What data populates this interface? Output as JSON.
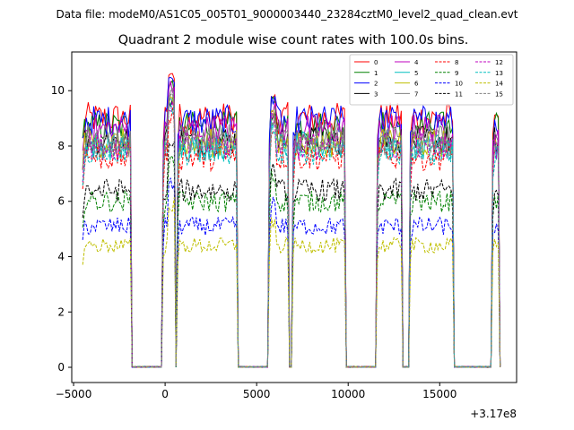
{
  "chart_data": {
    "type": "line",
    "suptitle": "Data file: modeM0/AS1C05_005T01_9000003440_23284cztM0_level2_quad_clean.evt",
    "title": "Quadrant 2 module wise count rates with 100.0s bins.",
    "xlabel": "",
    "ylabel": "",
    "offset_label": "+3.17e8",
    "xlim": [
      -5100,
      19200
    ],
    "ylim": [
      -0.55,
      11.4
    ],
    "xticks": [
      -5000,
      0,
      5000,
      10000,
      15000
    ],
    "xtick_labels": [
      "−5000",
      "0",
      "5000",
      "10000",
      "15000"
    ],
    "yticks": [
      0,
      2,
      4,
      6,
      8,
      10
    ],
    "ytick_labels": [
      "0",
      "2",
      "4",
      "6",
      "8",
      "10"
    ],
    "bin_seconds": 100,
    "observation_segments": [
      [
        -4500,
        -1900
      ],
      [
        -100,
        500
      ],
      [
        700,
        3900
      ],
      [
        5700,
        6700
      ],
      [
        7000,
        9800
      ],
      [
        11600,
        12900
      ],
      [
        13400,
        15700
      ],
      [
        17900,
        18200
      ]
    ],
    "series": [
      {
        "name": "0",
        "level": 9.0,
        "color": "#ff0000",
        "dash": false
      },
      {
        "name": "1",
        "level": 8.7,
        "color": "#008000",
        "dash": false
      },
      {
        "name": "2",
        "level": 8.9,
        "color": "#0000ff",
        "dash": false
      },
      {
        "name": "3",
        "level": 8.2,
        "color": "#000000",
        "dash": false
      },
      {
        "name": "4",
        "level": 8.6,
        "color": "#bf00bf",
        "dash": false
      },
      {
        "name": "5",
        "level": 8.0,
        "color": "#00bfbf",
        "dash": false
      },
      {
        "name": "6",
        "level": 8.1,
        "color": "#bfbf00",
        "dash": false
      },
      {
        "name": "7",
        "level": 8.3,
        "color": "#808080",
        "dash": false
      },
      {
        "name": "8",
        "level": 7.6,
        "color": "#ff0000",
        "dash": true
      },
      {
        "name": "9",
        "level": 6.0,
        "color": "#008000",
        "dash": true
      },
      {
        "name": "10",
        "level": 5.1,
        "color": "#0000ff",
        "dash": true
      },
      {
        "name": "11",
        "level": 6.4,
        "color": "#000000",
        "dash": true
      },
      {
        "name": "12",
        "level": 8.0,
        "color": "#bf00bf",
        "dash": true
      },
      {
        "name": "13",
        "level": 7.8,
        "color": "#00bfbf",
        "dash": true
      },
      {
        "name": "14",
        "level": 4.4,
        "color": "#bfbf00",
        "dash": true
      },
      {
        "name": "15",
        "level": 8.1,
        "color": "#808080",
        "dash": true
      }
    ],
    "legend": {
      "location": "upper right",
      "columns": 4
    }
  }
}
